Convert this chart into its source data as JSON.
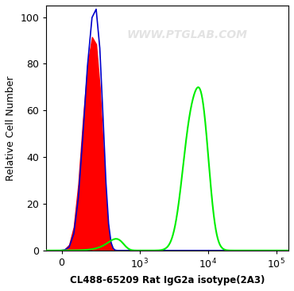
{
  "title": "WWW.PTGLAB.COM",
  "xlabel": "CL488-65209 Rat IgG2a isotype(2A3)",
  "ylabel": "Relative Cell Number",
  "ylim": [
    0,
    105
  ],
  "yticks": [
    0,
    20,
    40,
    60,
    80,
    100
  ],
  "background_color": "#ffffff",
  "colors": {
    "red_fill": "#ff0000",
    "blue_line": "#0000cc",
    "green_line": "#00ee00",
    "watermark": "#cccccc"
  },
  "symlog_linthresh": 200,
  "xlim": [
    -100,
    150000
  ]
}
